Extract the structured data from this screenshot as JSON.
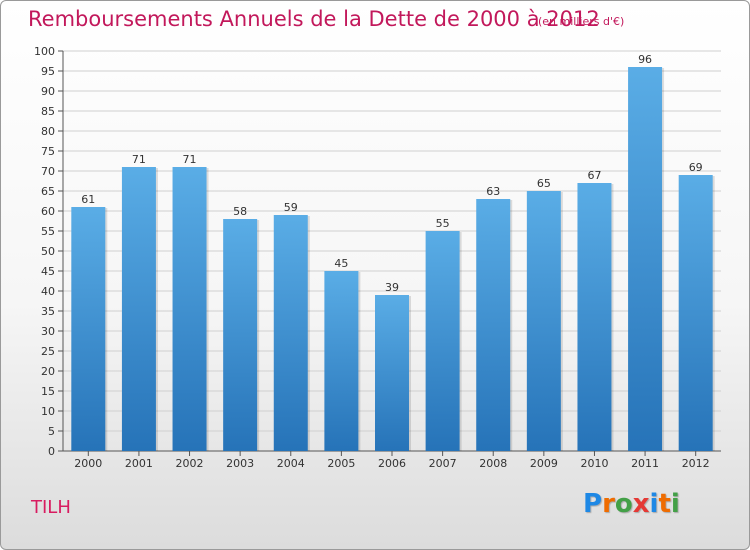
{
  "title": "Remboursements Annuels de la Dette de 2000 à 2012",
  "unit_note": "(en milliers d'€)",
  "commune": "TILH",
  "logo": {
    "text": "Proxiti",
    "letters": [
      {
        "ch": "P",
        "color": "#1e88e5"
      },
      {
        "ch": "r",
        "color": "#ef6c00"
      },
      {
        "ch": "o",
        "color": "#43a047"
      },
      {
        "ch": "x",
        "color": "#e53935"
      },
      {
        "ch": "i",
        "color": "#1e88e5"
      },
      {
        "ch": "t",
        "color": "#ef6c00"
      },
      {
        "ch": "i",
        "color": "#43a047"
      }
    ]
  },
  "colors": {
    "accent": "#c2185b",
    "bar_top": "#5aade6",
    "bar_bottom": "#2673b8",
    "grid": "#d0d0d0",
    "axis": "#555555",
    "label": "#333333"
  },
  "chart_data": {
    "type": "bar",
    "title": "Remboursements Annuels de la Dette de 2000 à 2012",
    "categories": [
      "2000",
      "2001",
      "2002",
      "2003",
      "2004",
      "2005",
      "2006",
      "2007",
      "2008",
      "2009",
      "2010",
      "2011",
      "2012"
    ],
    "values": [
      61,
      71,
      71,
      58,
      59,
      45,
      39,
      55,
      63,
      65,
      67,
      96,
      69
    ],
    "ylim": [
      0,
      100
    ],
    "ytick_step": 5,
    "grid": true,
    "xlabel": "",
    "ylabel": ""
  }
}
